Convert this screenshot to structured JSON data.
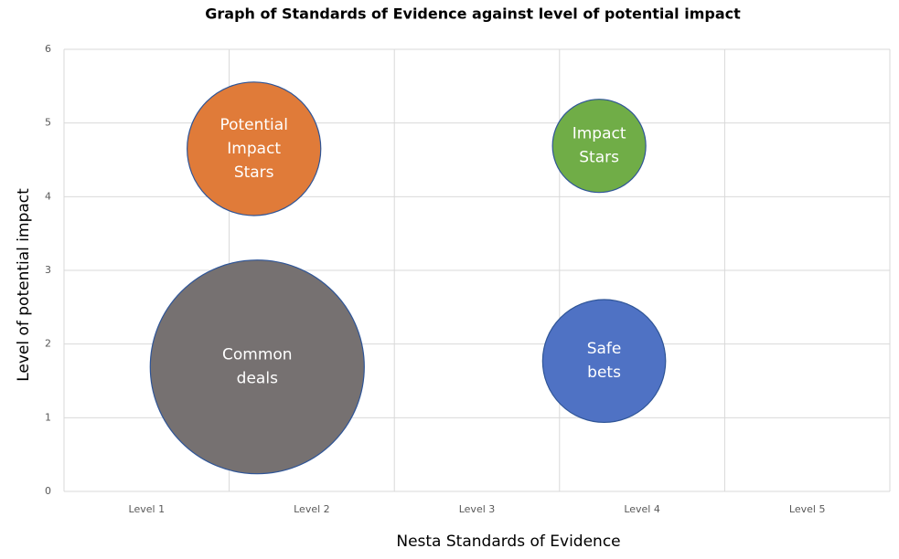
{
  "chart_data": {
    "type": "bubble",
    "title": "Graph of Standards of Evidence against level of potential impact",
    "x_label": "Nesta Standards of Evidence",
    "y_label": "Level of potential impact",
    "categories": [
      "Level 1",
      "Level 2",
      "Level 3",
      "Level 4",
      "Level 5"
    ],
    "xlim": [
      0.5,
      5.5
    ],
    "ylim": [
      0,
      6
    ],
    "yticks": [
      0,
      1,
      2,
      3,
      4,
      5,
      6
    ],
    "grid": true,
    "series": [
      {
        "name": "Potential Impact Stars",
        "color": "#e07b39",
        "x": [
          1.65
        ],
        "values": [
          4.65
        ],
        "sizes": [
          39
        ]
      },
      {
        "name": "Common deals",
        "color": "#767171",
        "x": [
          1.67
        ],
        "values": [
          1.69
        ],
        "sizes": [
          100
        ]
      },
      {
        "name": "Impact Stars",
        "color": "#70ad47",
        "x": [
          3.74
        ],
        "values": [
          4.69
        ],
        "sizes": [
          19
        ]
      },
      {
        "name": "Safe bets",
        "color": "#4f72c4",
        "x": [
          3.77
        ],
        "values": [
          1.77
        ],
        "sizes": [
          33
        ]
      }
    ]
  }
}
